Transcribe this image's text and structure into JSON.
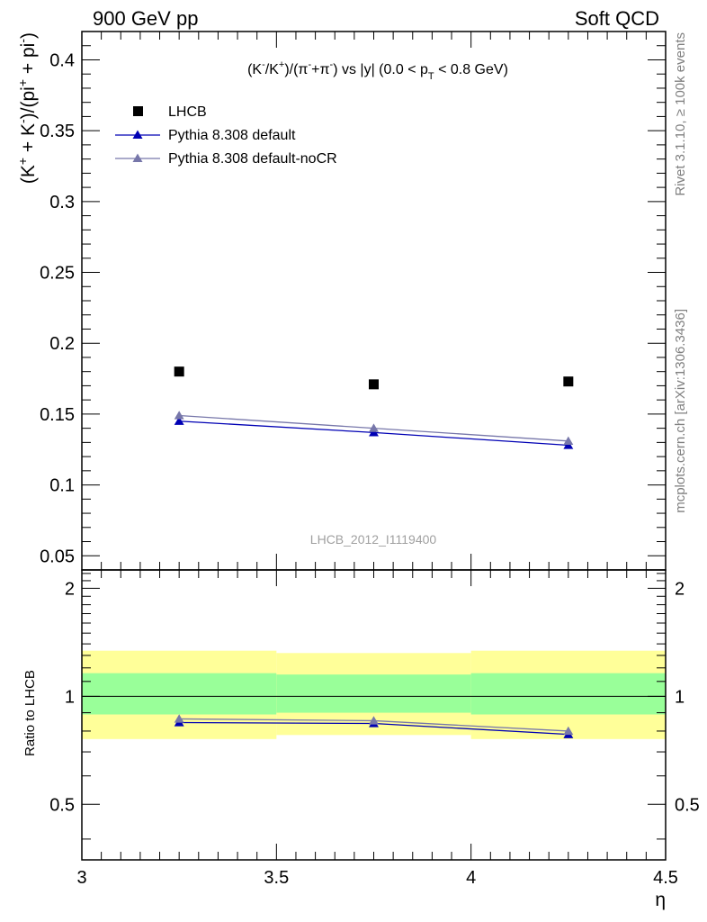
{
  "header": {
    "left": "900 GeV pp",
    "right": "Soft QCD"
  },
  "side_labels": {
    "rivet": "Rivet 3.1.10, ≥ 100k events",
    "mcplots": "mcplots.cern.ch [arXiv:1306.3436]"
  },
  "chart_data": [
    {
      "type": "scatter",
      "panel": "main",
      "title_parts": {
        "a": "(K",
        "a_sup": "-",
        "b": "/K",
        "b_sup": "+",
        "c": ")/(π",
        "c_sup": "-",
        "d": "+π",
        "d_sup": "-",
        "e": ") vs |y| (0.0 < p",
        "e_sub": "T",
        "f": " < 0.8 GeV)"
      },
      "ylabel_parts": {
        "a": "(K",
        "a_sup": "+",
        "b": " + K",
        "b_sup": "-",
        "c": ")/(pi",
        "c_sup": "+",
        "d": " + pi",
        "d_sup": "-",
        "e": ")"
      },
      "watermark": "LHCB_2012_I1119400",
      "xlim": [
        3.0,
        4.5
      ],
      "ylim": [
        0.04,
        0.42
      ],
      "y_ticks": [
        0.05,
        0.1,
        0.15,
        0.2,
        0.25,
        0.3,
        0.35,
        0.4
      ],
      "y_tick_labels": [
        "0.05",
        "0.1",
        "0.15",
        "0.2",
        "0.25",
        "0.3",
        "0.35",
        "0.4"
      ],
      "legend_position": "top-left",
      "series": [
        {
          "name": "LHCB",
          "color": "#000000",
          "marker": "square",
          "x": [
            3.25,
            3.75,
            4.25
          ],
          "y": [
            0.18,
            0.171,
            0.173
          ]
        },
        {
          "name": "Pythia 8.308 default",
          "color": "#0000b4",
          "marker": "triangle",
          "x": [
            3.25,
            3.75,
            4.25
          ],
          "y": [
            0.145,
            0.137,
            0.128
          ]
        },
        {
          "name": "Pythia 8.308 default-noCR",
          "color": "#7777aa",
          "marker": "triangle",
          "x": [
            3.25,
            3.75,
            4.25
          ],
          "y": [
            0.149,
            0.14,
            0.131
          ]
        }
      ]
    },
    {
      "type": "line",
      "panel": "ratio",
      "ylabel": "Ratio to LHCB",
      "xlabel": "η",
      "xlim": [
        3.0,
        4.5
      ],
      "ylim": [
        0.35,
        2.25
      ],
      "x_ticks": [
        3,
        3.5,
        4,
        4.5
      ],
      "x_tick_labels": [
        "3",
        "3.5",
        "4",
        "4.5"
      ],
      "y_ticks": [
        0.5,
        1,
        2
      ],
      "y_tick_labels": [
        "0.5",
        "1",
        "2"
      ],
      "bins": [
        {
          "x_low": 3.0,
          "x_high": 3.5,
          "inner": [
            0.89,
            1.16
          ],
          "outer": [
            0.76,
            1.34
          ]
        },
        {
          "x_low": 3.5,
          "x_high": 4.0,
          "inner": [
            0.9,
            1.15
          ],
          "outer": [
            0.78,
            1.32
          ]
        },
        {
          "x_low": 4.0,
          "x_high": 4.5,
          "inner": [
            0.89,
            1.16
          ],
          "outer": [
            0.76,
            1.34
          ]
        }
      ],
      "band_colors": {
        "inner": "#99ff99",
        "outer": "#ffff99"
      },
      "series": [
        {
          "name": "Pythia 8.308 default",
          "color": "#0000b4",
          "marker": "triangle",
          "x": [
            3.25,
            3.75,
            4.25
          ],
          "y": [
            0.845,
            0.84,
            0.783
          ]
        },
        {
          "name": "Pythia 8.308 default-noCR",
          "color": "#7777aa",
          "marker": "triangle",
          "x": [
            3.25,
            3.75,
            4.25
          ],
          "y": [
            0.865,
            0.855,
            0.8
          ]
        }
      ]
    }
  ]
}
